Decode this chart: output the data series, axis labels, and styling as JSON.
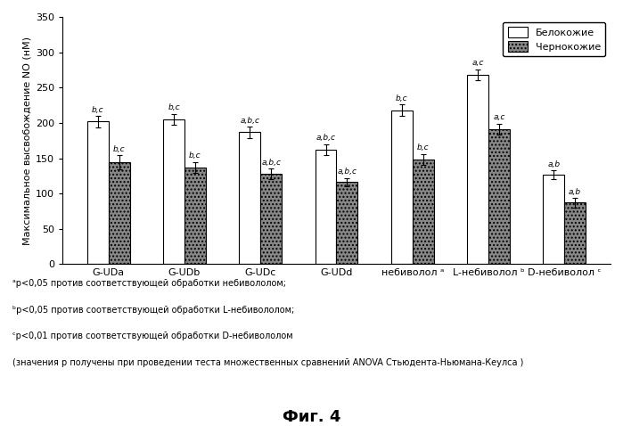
{
  "categories": [
    "G-UDa",
    "G-UDb",
    "G-UDc",
    "G-UDd",
    "небиволол ᵃ",
    "L-небиволол ᵇ",
    "D-небиволол ᶜ"
  ],
  "white_values": [
    202,
    205,
    187,
    162,
    218,
    268,
    127
  ],
  "black_values": [
    144,
    137,
    128,
    116,
    148,
    191,
    87
  ],
  "white_errors": [
    8,
    8,
    8,
    8,
    8,
    8,
    6
  ],
  "black_errors": [
    10,
    8,
    7,
    6,
    8,
    8,
    7
  ],
  "white_labels": [
    "b,c",
    "b,c",
    "a,b,c",
    "a,b,c",
    "b,c",
    "a,c",
    "a,b"
  ],
  "black_labels": [
    "b,c",
    "b,c",
    "a,b,c",
    "a,b,c",
    "b,c",
    "a,c",
    "a,b"
  ],
  "ylabel": "Максимальное высвобождение NO (нМ)",
  "ylim": [
    0,
    350
  ],
  "yticks": [
    0,
    50,
    100,
    150,
    200,
    250,
    300,
    350
  ],
  "legend_white": "Белокожие",
  "legend_black": "Чернокожие",
  "footnote1": "ᵃp<0,05 против соответствующей обработки небивололом;",
  "footnote2": "ᵇp<0,05 против соответствующей обработки L-небивололом;",
  "footnote3": "ᶜp<0,01 против соответствующей обработки D-небивололом",
  "footnote4": "(значения p получены при проведении теста множественных сравнений ANOVA Стьюдента-Ньюмана-Кеулса )",
  "fig_label": "Фиг. 4",
  "bar_width": 0.28,
  "edge_color": "black"
}
